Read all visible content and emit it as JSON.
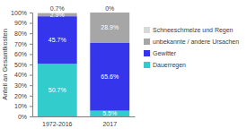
{
  "chart_data": {
    "type": "bar",
    "stacked": true,
    "data_labels": true,
    "grid": false,
    "legend": "right",
    "y_label": "Anteil an Gesamtkosten",
    "categories": [
      "1972-2016",
      "2017"
    ],
    "series": [
      {
        "name": "Dauerregen",
        "color": "#33cccc",
        "values": [
          50.7,
          5.5
        ],
        "value_labels": [
          "50.7%",
          "5.5%"
        ]
      },
      {
        "name": "Gewitter",
        "color": "#3535ec",
        "values": [
          45.7,
          65.6
        ],
        "value_labels": [
          "45.7%",
          "65.6%"
        ]
      },
      {
        "name": "unbekannte / andere Ursachen",
        "color": "#a6a6a6",
        "values": [
          2.9,
          28.9
        ],
        "value_labels": [
          "2.9%",
          "28.9%"
        ]
      },
      {
        "name": "Schneeschmelze und Regen",
        "color": "#d9d9d9",
        "values": [
          0.7,
          0
        ],
        "value_labels": [
          "0.7%",
          "0%"
        ]
      }
    ],
    "ylim": [
      0,
      100
    ],
    "yticks": [
      {
        "value": 0,
        "label": "0%"
      },
      {
        "value": 10,
        "label": "10%"
      },
      {
        "value": 20,
        "label": "20%"
      },
      {
        "value": 30,
        "label": "30%"
      },
      {
        "value": 40,
        "label": "40%"
      },
      {
        "value": 50,
        "label": "50%"
      },
      {
        "value": 60,
        "label": "60%"
      },
      {
        "value": 70,
        "label": "70%"
      },
      {
        "value": 80,
        "label": "80%"
      },
      {
        "value": 90,
        "label": "90%"
      },
      {
        "value": 100,
        "label": "100%"
      }
    ]
  }
}
